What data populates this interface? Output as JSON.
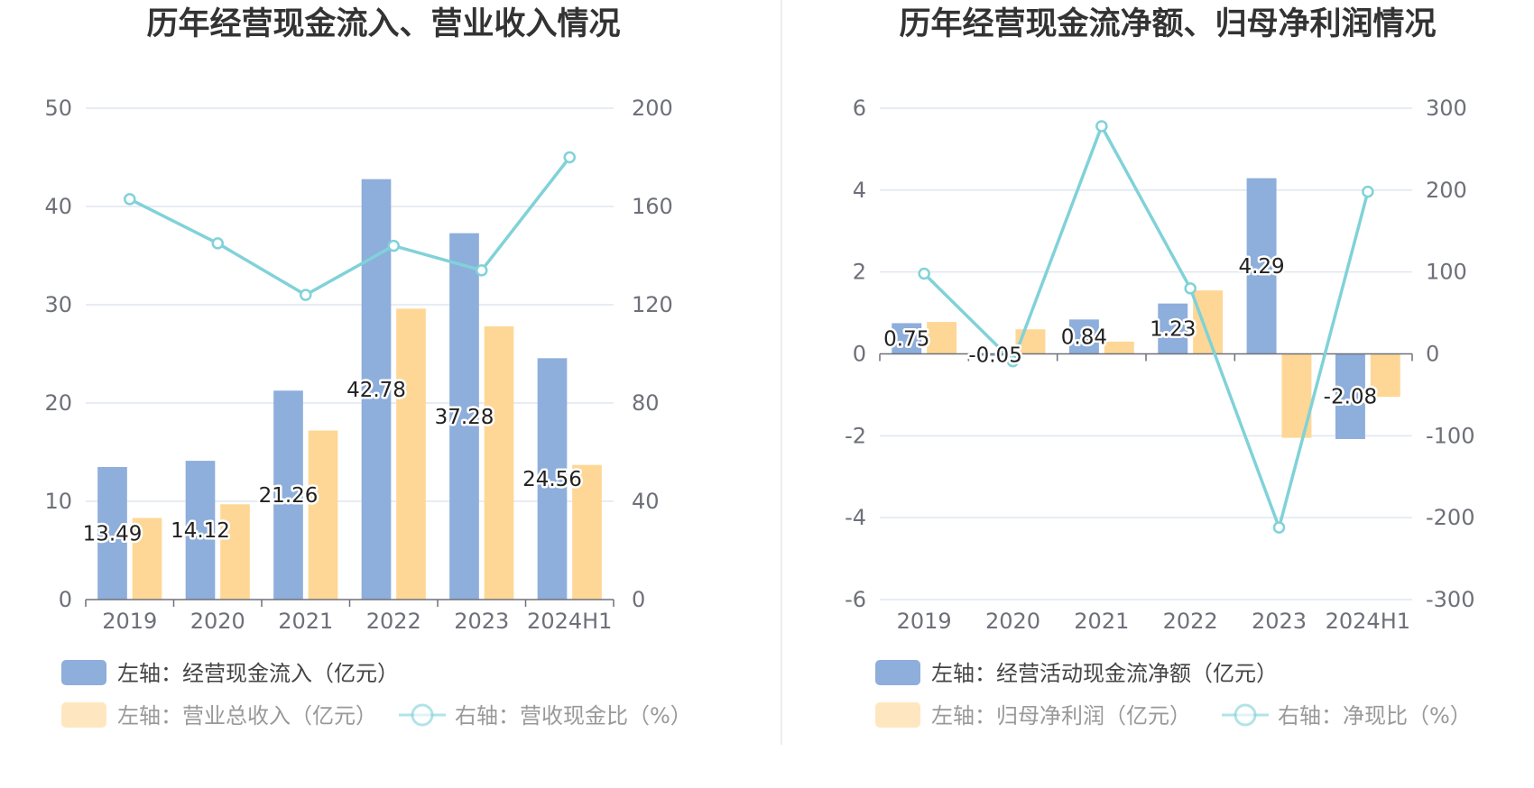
{
  "chart_data": [
    {
      "type": "bar+line",
      "title": "历年经营现金流入、营业收入情况",
      "categories": [
        "2019",
        "2020",
        "2021",
        "2022",
        "2023",
        "2024H1"
      ],
      "y_left": {
        "min": 0,
        "max": 50,
        "ticks": [
          "0",
          "10",
          "20",
          "30",
          "40",
          "50"
        ]
      },
      "y_right": {
        "min": 0,
        "max": 200,
        "ticks": [
          "0",
          "40",
          "80",
          "120",
          "160",
          "200"
        ]
      },
      "series": [
        {
          "name": "左轴：经营现金流入（亿元）",
          "type": "bar",
          "axis": "left",
          "color": "#8eaedb",
          "values": [
            13.49,
            14.12,
            21.26,
            42.78,
            37.28,
            24.56
          ],
          "labels": [
            "13.49",
            "14.12",
            "21.26",
            "42.78",
            "37.28",
            "24.56"
          ]
        },
        {
          "name": "左轴：营业总收入（亿元）",
          "type": "bar",
          "axis": "left",
          "color": "#fed796",
          "values": [
            8.3,
            9.7,
            17.2,
            29.6,
            27.8,
            13.7
          ]
        },
        {
          "name": "右轴：营收现金比（%）",
          "type": "line",
          "axis": "right",
          "color": "#80d2d8",
          "values": [
            163,
            145,
            124,
            144,
            134,
            180
          ]
        }
      ]
    },
    {
      "type": "bar+line",
      "title": "历年经营现金流净额、归母净利润情况",
      "categories": [
        "2019",
        "2020",
        "2021",
        "2022",
        "2023",
        "2024H1"
      ],
      "y_left": {
        "min": -6,
        "max": 6,
        "ticks": [
          "-6",
          "-4",
          "-2",
          "0",
          "2",
          "4",
          "6"
        ]
      },
      "y_right": {
        "min": -300,
        "max": 300,
        "ticks": [
          "-300",
          "-200",
          "-100",
          "0",
          "100",
          "200",
          "300"
        ]
      },
      "series": [
        {
          "name": "左轴：经营活动现金流净额（亿元）",
          "type": "bar",
          "axis": "left",
          "color": "#8eaedb",
          "values": [
            0.75,
            -0.05,
            0.84,
            1.23,
            4.29,
            -2.08
          ],
          "labels": [
            "0.75",
            "-0.05",
            "0.84",
            "1.23",
            "4.29",
            "-2.08"
          ]
        },
        {
          "name": "左轴：归母净利润（亿元）",
          "type": "bar",
          "axis": "left",
          "color": "#fed796",
          "values": [
            0.78,
            0.6,
            0.3,
            1.55,
            -2.05,
            -1.05
          ]
        },
        {
          "name": "右轴：净现比（%）",
          "type": "line",
          "axis": "right",
          "color": "#80d2d8",
          "values": [
            98,
            -9,
            278,
            80,
            -212,
            198
          ]
        }
      ]
    }
  ]
}
